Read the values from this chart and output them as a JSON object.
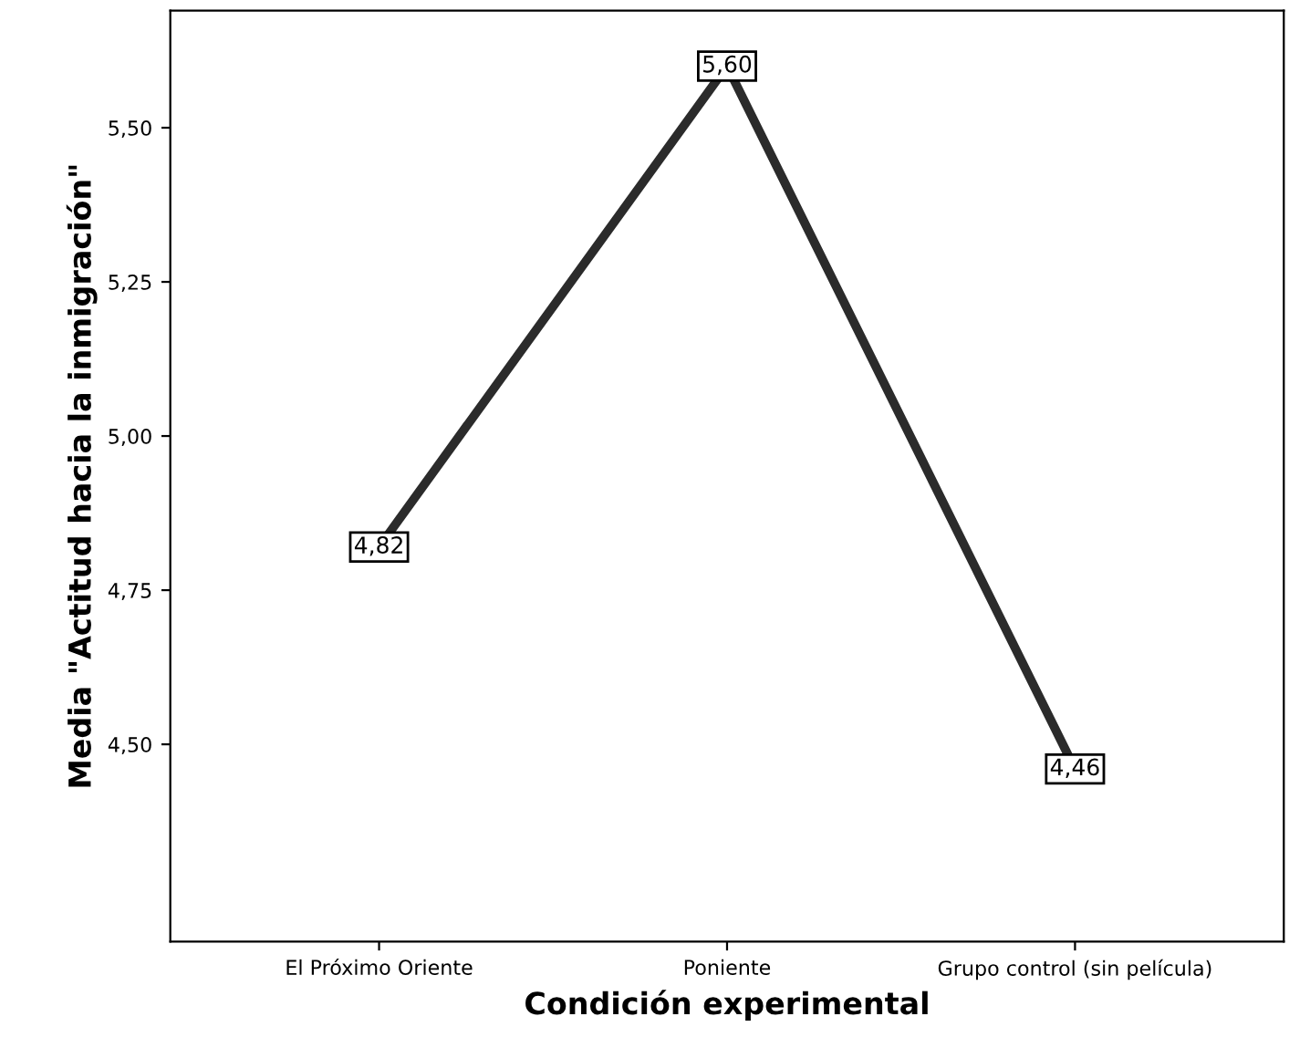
{
  "chart_data": {
    "type": "line",
    "xlabel": "Condición experimental",
    "ylabel": "Media \"Actitud hacia la inmigración\"",
    "categories": [
      "El Próximo Oriente",
      "Poniente",
      "Grupo control (sin película)"
    ],
    "series": [
      {
        "color": "#2b2b2b",
        "values": [
          4.82,
          5.6,
          4.46
        ],
        "value_labels": [
          "4,82",
          "5,60",
          "4,46"
        ]
      }
    ],
    "ylim": [
      4.18,
      5.69
    ],
    "yticks": [
      {
        "value": 4.5,
        "label": "4,50"
      },
      {
        "value": 4.75,
        "label": "4,75"
      },
      {
        "value": 5.0,
        "label": "5,00"
      },
      {
        "value": 5.25,
        "label": "5,25"
      },
      {
        "value": 5.5,
        "label": "5,50"
      }
    ],
    "grid": false,
    "marker": "square",
    "line_style": "solid"
  }
}
